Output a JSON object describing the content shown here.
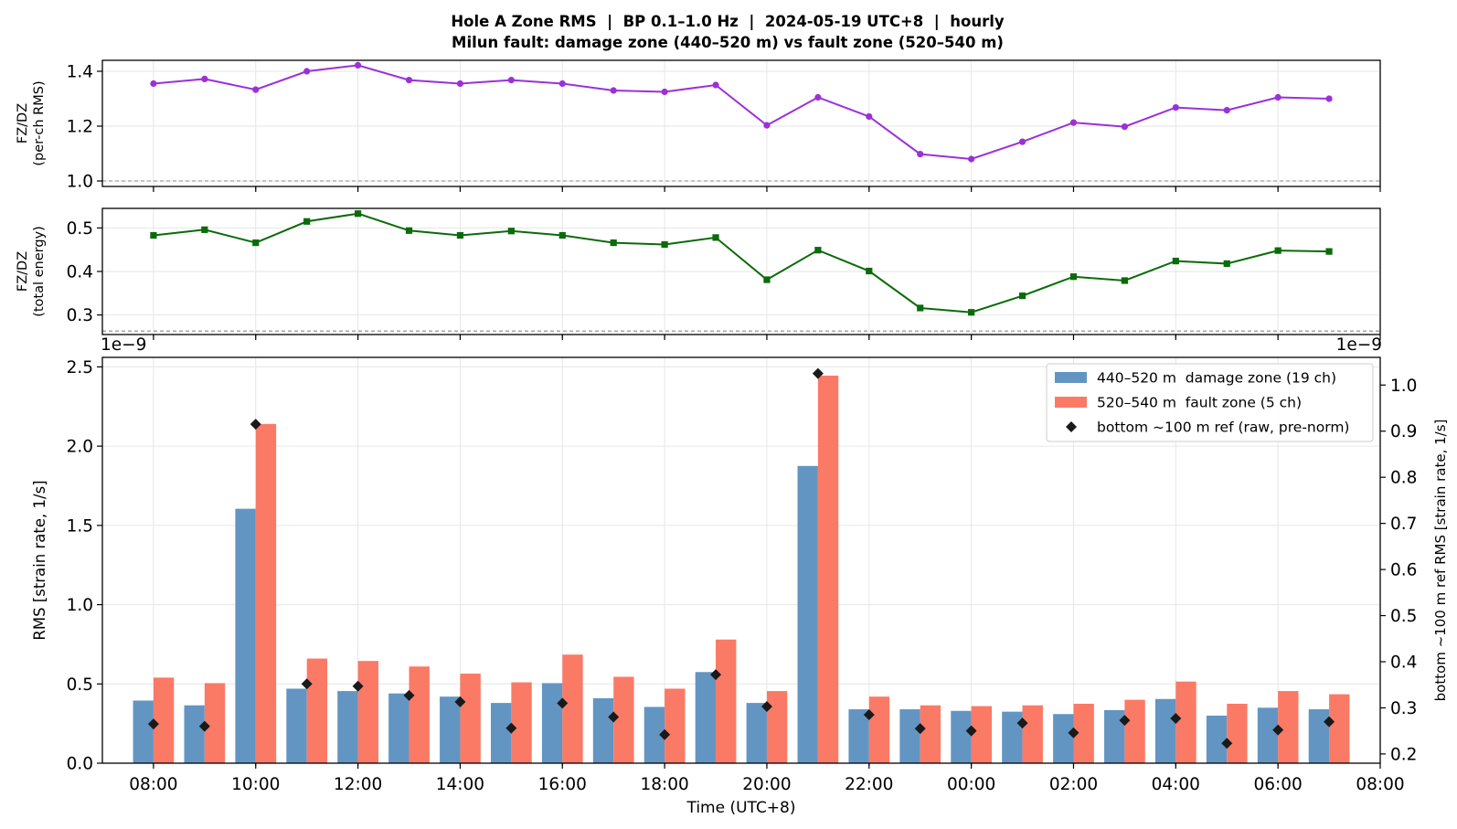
{
  "figure": {
    "title_line1": "Hole A Zone RMS  |  BP 0.1–1.0 Hz  |  2024-05-19 UTC+8  |  hourly",
    "title_line2": "Milun fault: damage zone (440–520 m) vs fault zone (520–540 m)",
    "colors": {
      "fz_per_ch": "#9b30d9",
      "fz_total": "#0a6b0a",
      "damage_zone": "#6395c3",
      "fault_zone": "#fa7a66",
      "bottom_ref": "#1a1a1a",
      "ref_line": "#888888",
      "grid": "#e6e6e6"
    }
  },
  "chart_data": [
    {
      "type": "line",
      "ylabel_line1": "FZ/DZ",
      "ylabel_line2": "(per-ch RMS)",
      "ylim": [
        0.98,
        1.44
      ],
      "yticks": [
        1.0,
        1.2,
        1.4
      ],
      "ytick_labels": [
        "1.0",
        "1.2",
        "1.4"
      ],
      "reference_line": 1.0,
      "marker": "circle",
      "x": [
        "2024-05-19 08:00",
        "2024-05-19 09:00",
        "2024-05-19 10:00",
        "2024-05-19 11:00",
        "2024-05-19 12:00",
        "2024-05-19 13:00",
        "2024-05-19 14:00",
        "2024-05-19 15:00",
        "2024-05-19 16:00",
        "2024-05-19 17:00",
        "2024-05-19 18:00",
        "2024-05-19 19:00",
        "2024-05-19 20:00",
        "2024-05-19 21:00",
        "2024-05-19 22:00",
        "2024-05-19 23:00",
        "2024-05-20 00:00",
        "2024-05-20 01:00",
        "2024-05-20 02:00",
        "2024-05-20 03:00",
        "2024-05-20 04:00",
        "2024-05-20 05:00",
        "2024-05-20 06:00",
        "2024-05-20 07:00"
      ],
      "values": [
        1.355,
        1.372,
        1.333,
        1.4,
        1.422,
        1.368,
        1.355,
        1.368,
        1.355,
        1.33,
        1.325,
        1.35,
        1.203,
        1.305,
        1.235,
        1.098,
        1.08,
        1.143,
        1.213,
        1.198,
        1.268,
        1.258,
        1.305,
        1.3
      ],
      "grid": true
    },
    {
      "type": "line",
      "ylabel_line1": "FZ/DZ",
      "ylabel_line2": "(total energy)",
      "ylim": [
        0.255,
        0.545
      ],
      "yticks": [
        0.3,
        0.4,
        0.5
      ],
      "ytick_labels": [
        "0.3",
        "0.4",
        "0.5"
      ],
      "reference_line": 0.263,
      "marker": "square",
      "x": [
        "2024-05-19 08:00",
        "2024-05-19 09:00",
        "2024-05-19 10:00",
        "2024-05-19 11:00",
        "2024-05-19 12:00",
        "2024-05-19 13:00",
        "2024-05-19 14:00",
        "2024-05-19 15:00",
        "2024-05-19 16:00",
        "2024-05-19 17:00",
        "2024-05-19 18:00",
        "2024-05-19 19:00",
        "2024-05-19 20:00",
        "2024-05-19 21:00",
        "2024-05-19 22:00",
        "2024-05-19 23:00",
        "2024-05-20 00:00",
        "2024-05-20 01:00",
        "2024-05-20 02:00",
        "2024-05-20 03:00",
        "2024-05-20 04:00",
        "2024-05-20 05:00",
        "2024-05-20 06:00",
        "2024-05-20 07:00"
      ],
      "values": [
        0.483,
        0.496,
        0.466,
        0.515,
        0.533,
        0.494,
        0.483,
        0.493,
        0.483,
        0.466,
        0.462,
        0.478,
        0.381,
        0.449,
        0.401,
        0.316,
        0.306,
        0.344,
        0.388,
        0.379,
        0.424,
        0.418,
        0.448,
        0.446
      ],
      "grid": true
    },
    {
      "type": "bar",
      "ylabel": "RMS  [strain rate, 1/s]",
      "y2label": "bottom ~100 m ref RMS  [strain rate, 1/s]",
      "xlabel": "Time (UTC+8)",
      "offset_left": "1e−9",
      "offset_right": "1e−9",
      "ylim": [
        0,
        2.56
      ],
      "yticks": [
        0,
        0.5,
        1.0,
        1.5,
        2.0,
        2.5
      ],
      "ytick_labels": [
        "0.0",
        "0.5",
        "1.0",
        "1.5",
        "2.0",
        "2.5"
      ],
      "y2lim": [
        0.18,
        1.06
      ],
      "y2ticks": [
        0.2,
        0.3,
        0.4,
        0.5,
        0.6,
        0.7,
        0.8,
        0.9,
        1.0
      ],
      "y2tick_labels": [
        "0.2",
        "0.3",
        "0.4",
        "0.5",
        "0.6",
        "0.7",
        "0.8",
        "0.9",
        "1.0"
      ],
      "xlim": [
        "2024-05-19 07:00",
        "2024-05-20 08:00"
      ],
      "xticks": [
        "2024-05-19 08:00",
        "2024-05-19 10:00",
        "2024-05-19 12:00",
        "2024-05-19 14:00",
        "2024-05-19 16:00",
        "2024-05-19 18:00",
        "2024-05-19 20:00",
        "2024-05-19 22:00",
        "2024-05-20 00:00",
        "2024-05-20 02:00",
        "2024-05-20 04:00",
        "2024-05-20 06:00",
        "2024-05-20 08:00"
      ],
      "xtick_labels": [
        "08:00",
        "10:00",
        "12:00",
        "14:00",
        "16:00",
        "18:00",
        "20:00",
        "22:00",
        "00:00",
        "02:00",
        "04:00",
        "06:00",
        "08:00"
      ],
      "x": [
        "2024-05-19 08:00",
        "2024-05-19 09:00",
        "2024-05-19 10:00",
        "2024-05-19 11:00",
        "2024-05-19 12:00",
        "2024-05-19 13:00",
        "2024-05-19 14:00",
        "2024-05-19 15:00",
        "2024-05-19 16:00",
        "2024-05-19 17:00",
        "2024-05-19 18:00",
        "2024-05-19 19:00",
        "2024-05-19 20:00",
        "2024-05-19 21:00",
        "2024-05-19 22:00",
        "2024-05-19 23:00",
        "2024-05-20 00:00",
        "2024-05-20 01:00",
        "2024-05-20 02:00",
        "2024-05-20 03:00",
        "2024-05-20 04:00",
        "2024-05-20 05:00",
        "2024-05-20 06:00",
        "2024-05-20 07:00"
      ],
      "series": [
        {
          "name": "440–520 m  damage zone (19 ch)",
          "marker": "bar",
          "values": [
            0.395,
            0.365,
            1.605,
            0.47,
            0.455,
            0.44,
            0.42,
            0.38,
            0.505,
            0.41,
            0.355,
            0.575,
            0.38,
            1.875,
            0.34,
            0.34,
            0.33,
            0.325,
            0.31,
            0.335,
            0.405,
            0.3,
            0.35,
            0.34
          ]
        },
        {
          "name": "520–540 m  fault zone (5 ch)",
          "marker": "bar",
          "values": [
            0.54,
            0.505,
            2.14,
            0.66,
            0.645,
            0.61,
            0.565,
            0.51,
            0.685,
            0.545,
            0.47,
            0.78,
            0.455,
            2.445,
            0.42,
            0.365,
            0.36,
            0.365,
            0.375,
            0.4,
            0.515,
            0.375,
            0.455,
            0.435
          ]
        },
        {
          "name": "bottom ~100 m ref (raw, pre-norm)",
          "marker": "diamond",
          "axis": "right",
          "values": [
            0.265,
            0.26,
            0.915,
            0.352,
            0.347,
            0.327,
            0.313,
            0.256,
            0.31,
            0.28,
            0.242,
            0.372,
            0.303,
            1.025,
            0.285,
            0.255,
            0.25,
            0.267,
            0.246,
            0.273,
            0.277,
            0.223,
            0.252,
            0.27
          ]
        }
      ],
      "legend_position": "top-right",
      "grid": true
    }
  ]
}
